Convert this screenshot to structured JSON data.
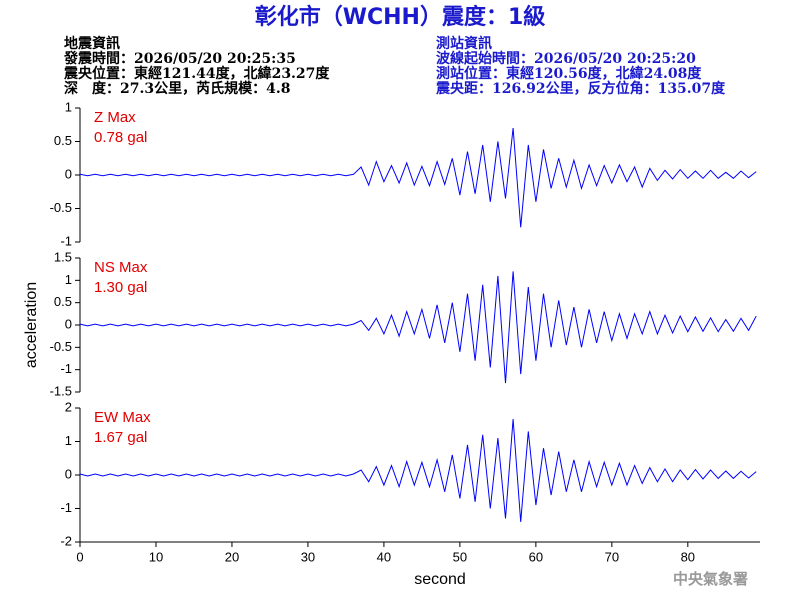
{
  "header": {
    "title": "彰化市（WCHH）震度：1級",
    "left": [
      "地震資訊",
      "發震時間：2026/05/20 20:25:35",
      "震央位置：東經121.44度，北緯23.27度",
      "深　度：27.3公里，芮氏規模：4.8"
    ],
    "right": [
      "測站資訊",
      "波線起始時間：2026/05/20 20:25:20",
      "測站位置：東經120.56度，北緯24.08度",
      "震央距：126.92公里，反方位角：135.07度"
    ]
  },
  "footer": "中央氣象署",
  "chart_data": [
    {
      "type": "line",
      "annotations": [
        "Z Max",
        "0.78 gal"
      ],
      "annotation_color": "#e00000",
      "xlim": [
        0,
        89.5
      ],
      "ylim": [
        -1,
        1
      ],
      "yticks": [
        -1,
        -0.5,
        0,
        0.5,
        1
      ],
      "x": [
        0,
        1,
        2,
        3,
        4,
        5,
        6,
        7,
        8,
        9,
        10,
        11,
        12,
        13,
        14,
        15,
        16,
        17,
        18,
        19,
        20,
        21,
        22,
        23,
        24,
        25,
        26,
        27,
        28,
        29,
        30,
        31,
        32,
        33,
        34,
        35,
        36,
        37,
        38,
        39,
        40,
        41,
        42,
        43,
        44,
        45,
        46,
        47,
        48,
        49,
        50,
        51,
        52,
        53,
        54,
        55,
        56,
        57,
        58,
        59,
        60,
        61,
        62,
        63,
        64,
        65,
        66,
        67,
        68,
        69,
        70,
        71,
        72,
        73,
        74,
        75,
        76,
        77,
        78,
        79,
        80,
        81,
        82,
        83,
        84,
        85,
        86,
        87,
        88,
        89
      ],
      "series": [
        {
          "color": "#0000ff",
          "values": [
            0.01,
            -0.01,
            0.01,
            -0.01,
            0.01,
            -0.01,
            0.01,
            -0.01,
            0.01,
            -0.01,
            0.01,
            -0.01,
            0.01,
            -0.01,
            0.01,
            -0.01,
            0.01,
            -0.01,
            0.01,
            -0.01,
            0.01,
            -0.01,
            0.01,
            -0.01,
            0.01,
            -0.01,
            0.01,
            -0.01,
            0.01,
            -0.01,
            0.01,
            -0.01,
            0.01,
            -0.01,
            0.01,
            -0.01,
            0.01,
            0.12,
            -0.15,
            0.2,
            -0.1,
            0.14,
            -0.12,
            0.18,
            -0.15,
            0.13,
            -0.16,
            0.2,
            -0.14,
            0.25,
            -0.3,
            0.35,
            -0.28,
            0.45,
            -0.4,
            0.5,
            -0.35,
            0.7,
            -0.78,
            0.45,
            -0.4,
            0.38,
            -0.2,
            0.25,
            -0.18,
            0.22,
            -0.2,
            0.15,
            -0.16,
            0.14,
            -0.12,
            0.15,
            -0.1,
            0.12,
            -0.18,
            0.1,
            -0.08,
            0.07,
            -0.06,
            0.08,
            -0.05,
            0.06,
            -0.05,
            0.07,
            -0.05,
            0.04,
            -0.05,
            0.06,
            -0.04,
            0.05
          ]
        }
      ]
    },
    {
      "type": "line",
      "annotations": [
        "NS Max",
        "1.30 gal"
      ],
      "annotation_color": "#e00000",
      "ylabel": "acceleration",
      "xlim": [
        0,
        89.5
      ],
      "ylim": [
        -1.5,
        1.5
      ],
      "yticks": [
        -1.5,
        -1,
        -0.5,
        0,
        0.5,
        1,
        1.5
      ],
      "x": [
        0,
        1,
        2,
        3,
        4,
        5,
        6,
        7,
        8,
        9,
        10,
        11,
        12,
        13,
        14,
        15,
        16,
        17,
        18,
        19,
        20,
        21,
        22,
        23,
        24,
        25,
        26,
        27,
        28,
        29,
        30,
        31,
        32,
        33,
        34,
        35,
        36,
        37,
        38,
        39,
        40,
        41,
        42,
        43,
        44,
        45,
        46,
        47,
        48,
        49,
        50,
        51,
        52,
        53,
        54,
        55,
        56,
        57,
        58,
        59,
        60,
        61,
        62,
        63,
        64,
        65,
        66,
        67,
        68,
        69,
        70,
        71,
        72,
        73,
        74,
        75,
        76,
        77,
        78,
        79,
        80,
        81,
        82,
        83,
        84,
        85,
        86,
        87,
        88,
        89
      ],
      "series": [
        {
          "color": "#0000ff",
          "values": [
            0.02,
            -0.02,
            0.02,
            -0.02,
            0.02,
            -0.02,
            0.02,
            -0.02,
            0.02,
            -0.02,
            0.02,
            -0.02,
            0.02,
            -0.02,
            0.02,
            -0.02,
            0.02,
            -0.02,
            0.02,
            -0.02,
            0.02,
            -0.02,
            0.02,
            -0.02,
            0.02,
            -0.02,
            0.02,
            -0.02,
            0.02,
            -0.02,
            0.02,
            -0.02,
            0.02,
            -0.02,
            0.02,
            -0.02,
            0.02,
            0.1,
            -0.12,
            0.15,
            -0.2,
            0.22,
            -0.25,
            0.3,
            -0.2,
            0.35,
            -0.3,
            0.45,
            -0.4,
            0.5,
            -0.6,
            0.7,
            -0.8,
            0.9,
            -0.95,
            1.1,
            -1.3,
            1.2,
            -1.1,
            0.85,
            -0.8,
            0.7,
            -0.5,
            0.55,
            -0.45,
            0.4,
            -0.5,
            0.35,
            -0.4,
            0.3,
            -0.35,
            0.25,
            -0.3,
            0.25,
            -0.2,
            0.3,
            -0.2,
            0.22,
            -0.18,
            0.2,
            -0.15,
            0.18,
            -0.14,
            0.16,
            -0.15,
            0.12,
            -0.14,
            0.15,
            -0.12,
            0.2
          ]
        }
      ]
    },
    {
      "type": "line",
      "annotations": [
        "EW Max",
        "1.67 gal"
      ],
      "annotation_color": "#e00000",
      "xlabel": "second",
      "xlim": [
        0,
        89.5
      ],
      "xticks": [
        0,
        10,
        20,
        30,
        40,
        50,
        60,
        70,
        80
      ],
      "ylim": [
        -2,
        2
      ],
      "yticks": [
        -2,
        -1,
        0,
        1,
        2
      ],
      "x": [
        0,
        1,
        2,
        3,
        4,
        5,
        6,
        7,
        8,
        9,
        10,
        11,
        12,
        13,
        14,
        15,
        16,
        17,
        18,
        19,
        20,
        21,
        22,
        23,
        24,
        25,
        26,
        27,
        28,
        29,
        30,
        31,
        32,
        33,
        34,
        35,
        36,
        37,
        38,
        39,
        40,
        41,
        42,
        43,
        44,
        45,
        46,
        47,
        48,
        49,
        50,
        51,
        52,
        53,
        54,
        55,
        56,
        57,
        58,
        59,
        60,
        61,
        62,
        63,
        64,
        65,
        66,
        67,
        68,
        69,
        70,
        71,
        72,
        73,
        74,
        75,
        76,
        77,
        78,
        79,
        80,
        81,
        82,
        83,
        84,
        85,
        86,
        87,
        88,
        89
      ],
      "series": [
        {
          "color": "#0000ff",
          "values": [
            0.03,
            -0.03,
            0.03,
            -0.03,
            0.03,
            -0.03,
            0.03,
            -0.03,
            0.03,
            -0.03,
            0.03,
            -0.03,
            0.03,
            -0.03,
            0.03,
            -0.03,
            0.03,
            -0.03,
            0.03,
            -0.03,
            0.03,
            -0.03,
            0.03,
            -0.03,
            0.03,
            -0.03,
            0.03,
            -0.03,
            0.03,
            -0.03,
            0.03,
            -0.03,
            0.03,
            -0.03,
            0.03,
            -0.03,
            0.03,
            0.15,
            -0.2,
            0.25,
            -0.3,
            0.28,
            -0.35,
            0.4,
            -0.3,
            0.38,
            -0.35,
            0.45,
            -0.5,
            0.6,
            -0.7,
            0.9,
            -0.8,
            1.2,
            -1.0,
            1.1,
            -1.3,
            1.67,
            -1.4,
            1.3,
            -0.9,
            0.8,
            -0.6,
            0.7,
            -0.5,
            0.45,
            -0.5,
            0.4,
            -0.35,
            0.38,
            -0.3,
            0.35,
            -0.3,
            0.28,
            -0.25,
            0.22,
            -0.2,
            0.18,
            -0.2,
            0.15,
            -0.14,
            0.16,
            -0.12,
            0.15,
            -0.1,
            0.12,
            -0.1,
            0.11,
            -0.09,
            0.1
          ]
        }
      ]
    }
  ]
}
